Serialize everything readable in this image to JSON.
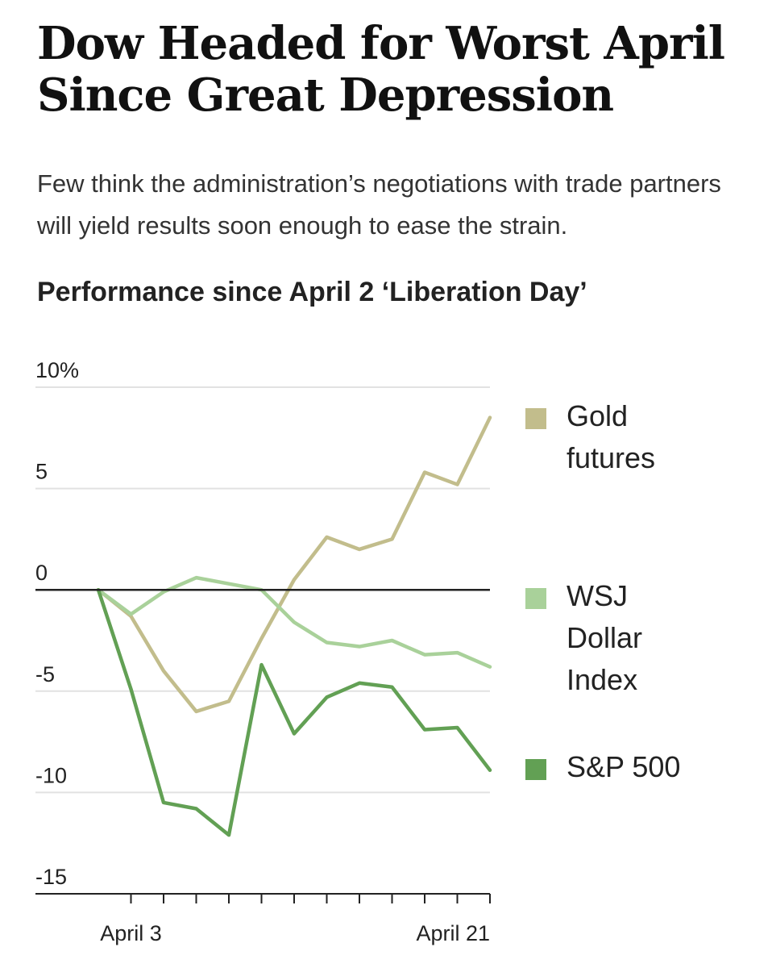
{
  "headline": "Dow Headed for Worst April Since Great Depression",
  "dek": "Few think the administration’s negotiations with trade partners will yield results soon enough to ease the strain.",
  "chart_data": {
    "type": "line",
    "title": "Performance since April 2 ‘Liberation Day’",
    "xlabel": "",
    "ylabel": "",
    "ylim": [
      -15,
      10
    ],
    "yticks": [
      10,
      5,
      0,
      -5,
      -10,
      -15
    ],
    "ytick_labels": [
      "10%",
      "5",
      "0",
      "-5",
      "-10",
      "-15"
    ],
    "x_tick_labels": [
      "April 3",
      "April 21"
    ],
    "x": [
      "Apr 2",
      "Apr 3",
      "Apr 4",
      "Apr 7",
      "Apr 8",
      "Apr 9",
      "Apr 10",
      "Apr 11",
      "Apr 14",
      "Apr 15",
      "Apr 16",
      "Apr 17",
      "Apr 21"
    ],
    "series": [
      {
        "name": "Gold futures",
        "color": "#c2bd8c",
        "values": [
          0.0,
          -1.3,
          -4.0,
          -6.0,
          -5.5,
          -2.4,
          0.5,
          2.6,
          2.0,
          2.5,
          5.8,
          5.2,
          8.5
        ]
      },
      {
        "name": "WSJ Dollar Index",
        "color": "#a9d19a",
        "values": [
          0.0,
          -1.2,
          -0.1,
          0.6,
          0.3,
          0.0,
          -1.6,
          -2.6,
          -2.8,
          -2.5,
          -3.2,
          -3.1,
          -3.8
        ]
      },
      {
        "name": "S&P 500",
        "color": "#62a054",
        "values": [
          0.0,
          -4.9,
          -10.5,
          -10.8,
          -12.1,
          -3.7,
          -7.1,
          -5.3,
          -4.6,
          -4.8,
          -6.9,
          -6.8,
          -8.9
        ]
      }
    ],
    "legend": [
      {
        "label_lines": [
          "Gold",
          "futures"
        ],
        "color": "#c2bd8c"
      },
      {
        "label_lines": [
          "WSJ",
          "Dollar",
          "Index"
        ],
        "color": "#a9d19a"
      },
      {
        "label_lines": [
          "S&P 500"
        ],
        "color": "#62a054"
      }
    ],
    "legend_position": "right",
    "grid": true,
    "gridline_color": "#e2e2e2",
    "zero_line_color": "#222222"
  }
}
